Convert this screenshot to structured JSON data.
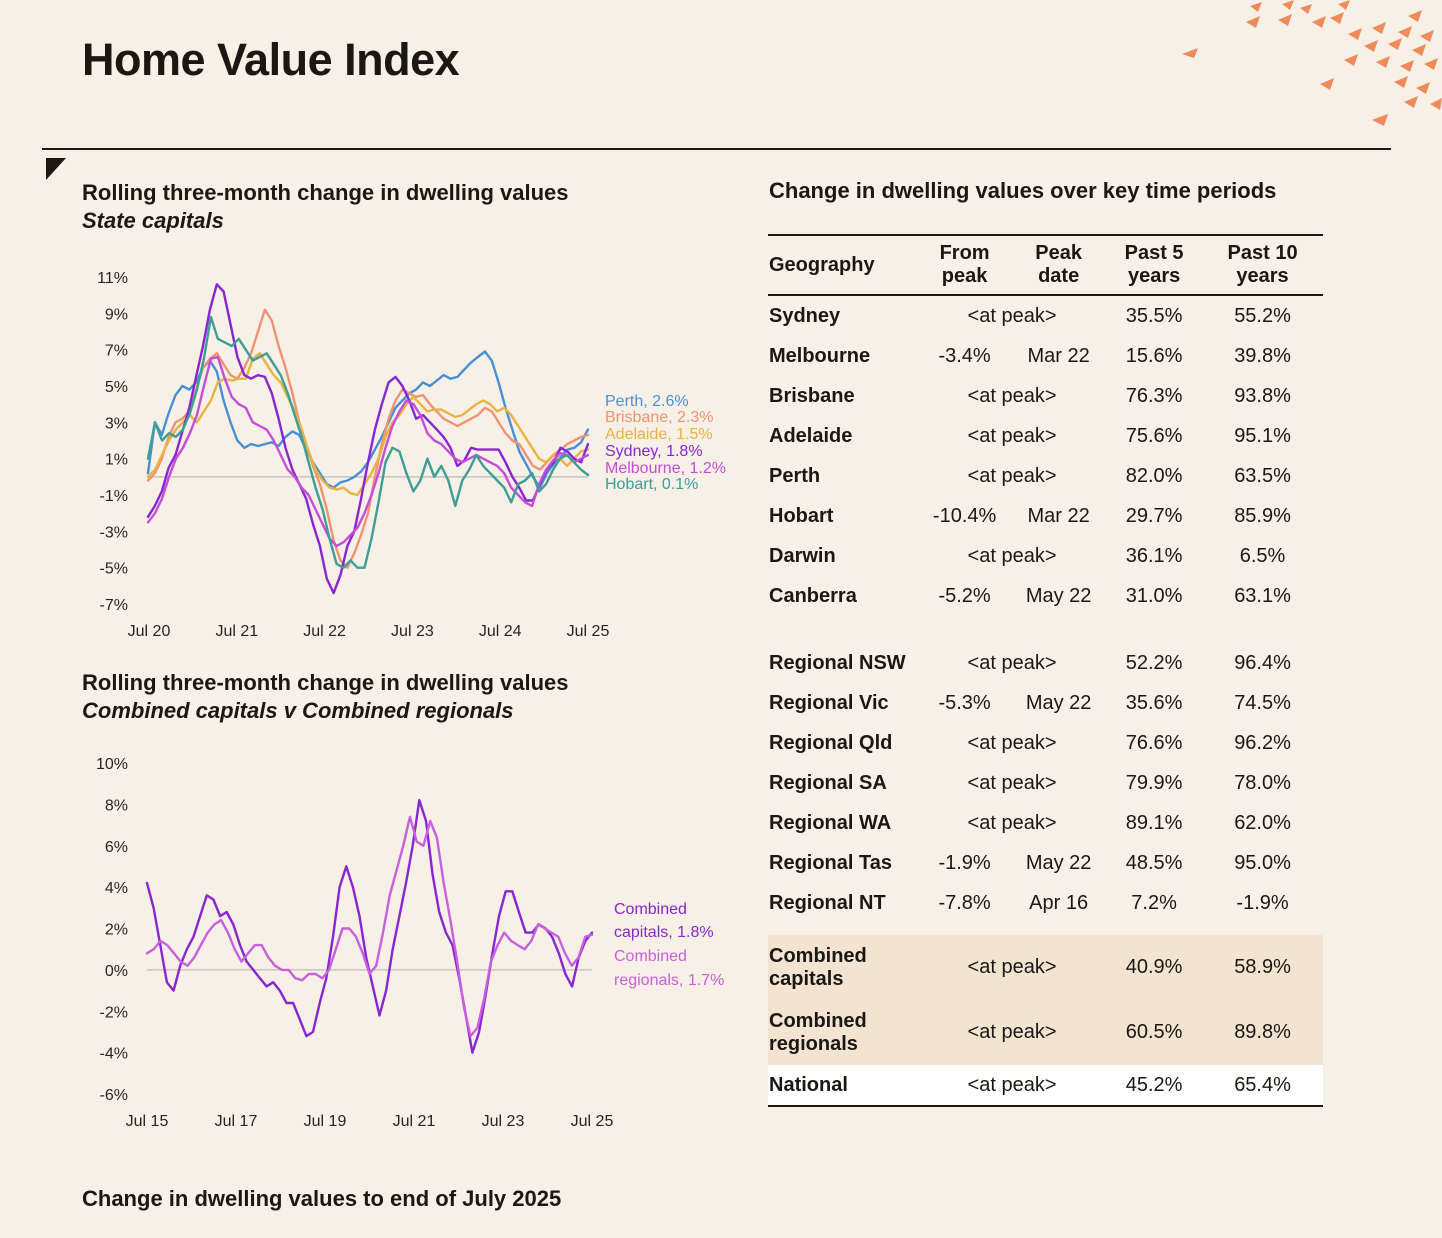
{
  "page": {
    "title": "Home Value Index",
    "footer_title": "Change in dwelling values to end of July 2025"
  },
  "colors": {
    "background": "#f6f0e6",
    "perth": "#4a8fd6",
    "brisbane": "#ef9473",
    "adelaide": "#e9b341",
    "sydney": "#8a25d2",
    "melbourne": "#c64dd8",
    "hobart": "#3e9e97",
    "combined_capitals": "#8a25d2",
    "combined_regionals": "#c860de",
    "table_highlight": "#f3e3d1"
  },
  "chart_data": [
    {
      "type": "line",
      "title": "Rolling three-month change in dwelling values",
      "subtitle": "State capitals",
      "xlabel": "",
      "ylabel": "",
      "x_ticks": [
        "Jul 20",
        "Jul 21",
        "Jul 22",
        "Jul 23",
        "Jul 24",
        "Jul 25"
      ],
      "y_ticks": [
        "11%",
        "9%",
        "7%",
        "5%",
        "3%",
        "1%",
        "-1%",
        "-3%",
        "-5%",
        "-7%"
      ],
      "ylim": [
        -7,
        11
      ],
      "x_range": [
        "Jun 20",
        "Jul 25"
      ],
      "series": [
        {
          "name": "Perth",
          "label": "Perth, 2.6%",
          "color": "#4a8fd6",
          "values": [
            0.2,
            3.0,
            2.3,
            3.5,
            4.5,
            5.0,
            4.8,
            5.2,
            6.0,
            6.4,
            5.8,
            4.2,
            3.0,
            2.0,
            1.6,
            1.8,
            1.7,
            1.8,
            1.9,
            1.7,
            2.2,
            2.5,
            2.3,
            1.5,
            0.8,
            0.2,
            -0.4,
            -0.6,
            -0.3,
            -0.2,
            0.0,
            0.3,
            0.8,
            1.5,
            2.2,
            3.0,
            3.8,
            4.2,
            4.6,
            4.8,
            5.2,
            5.0,
            5.3,
            5.6,
            5.4,
            5.5,
            5.9,
            6.3,
            6.6,
            6.9,
            6.4,
            5.2,
            3.8,
            2.6,
            1.4,
            0.7,
            0.0,
            -0.6,
            0.2,
            0.7,
            1.1,
            1.5,
            1.6,
            1.9,
            2.6
          ]
        },
        {
          "name": "Brisbane",
          "label": "Brisbane, 2.3%",
          "color": "#ef9473",
          "values": [
            -0.2,
            0.2,
            1.0,
            2.2,
            3.0,
            3.2,
            3.6,
            4.8,
            6.0,
            6.5,
            6.8,
            6.2,
            5.6,
            5.4,
            6.0,
            6.8,
            8.0,
            9.2,
            8.6,
            7.2,
            6.0,
            4.6,
            3.0,
            1.8,
            0.6,
            -0.4,
            -1.8,
            -3.5,
            -4.6,
            -5.0,
            -4.2,
            -3.2,
            -2.0,
            0.0,
            1.8,
            3.2,
            4.2,
            4.8,
            4.6,
            4.4,
            4.5,
            4.0,
            3.6,
            3.2,
            3.0,
            2.8,
            3.0,
            3.2,
            3.4,
            3.8,
            3.6,
            3.0,
            2.4,
            2.0,
            1.8,
            1.2,
            0.6,
            0.4,
            0.8,
            1.2,
            1.5,
            1.8,
            2.0,
            2.2,
            2.3
          ]
        },
        {
          "name": "Adelaide",
          "label": "Adelaide, 1.5%",
          "color": "#e9b341",
          "values": [
            0.0,
            0.4,
            1.2,
            2.0,
            2.6,
            3.0,
            3.4,
            3.0,
            3.6,
            4.2,
            5.2,
            5.4,
            5.3,
            5.4,
            5.4,
            6.5,
            6.8,
            6.2,
            5.6,
            5.2,
            4.4,
            3.6,
            2.6,
            1.4,
            0.4,
            -0.2,
            -0.6,
            -0.7,
            -0.6,
            -0.9,
            -1.0,
            -0.4,
            0.2,
            1.0,
            2.2,
            3.0,
            3.4,
            4.0,
            4.4,
            4.0,
            3.6,
            3.7,
            3.7,
            3.5,
            3.3,
            3.4,
            3.7,
            4.0,
            4.2,
            4.0,
            3.6,
            3.8,
            3.4,
            2.8,
            2.2,
            1.6,
            1.0,
            0.8,
            1.2,
            1.0,
            0.6,
            1.0,
            1.4,
            1.5
          ]
        },
        {
          "name": "Sydney",
          "label": "Sydney, 1.8%",
          "color": "#8a25d2",
          "values": [
            -2.2,
            -1.6,
            -0.8,
            0.5,
            1.2,
            2.5,
            3.8,
            5.5,
            7.2,
            9.2,
            10.6,
            10.2,
            8.4,
            6.6,
            5.6,
            5.4,
            5.6,
            5.5,
            4.6,
            3.2,
            1.6,
            0.4,
            -0.4,
            -1.2,
            -2.6,
            -3.8,
            -5.6,
            -6.4,
            -5.4,
            -3.8,
            -3.0,
            -1.2,
            0.8,
            2.6,
            4.0,
            5.2,
            5.5,
            5.0,
            4.2,
            3.2,
            3.4,
            3.0,
            2.6,
            2.2,
            1.6,
            0.6,
            0.9,
            1.6,
            1.5,
            1.5,
            1.5,
            1.5,
            0.8,
            0.0,
            -0.6,
            -1.3,
            -1.3,
            -0.4,
            0.4,
            0.8,
            1.6,
            1.4,
            1.0,
            0.8,
            1.8
          ]
        },
        {
          "name": "Melbourne",
          "label": "Melbourne, 1.2%",
          "color": "#c64dd8",
          "values": [
            -2.5,
            -2.0,
            -1.2,
            0.0,
            1.0,
            1.6,
            2.4,
            3.4,
            5.0,
            6.5,
            6.6,
            5.4,
            4.4,
            4.0,
            3.8,
            3.0,
            2.8,
            2.6,
            2.0,
            1.2,
            0.4,
            0.0,
            -0.6,
            -1.0,
            -1.8,
            -2.6,
            -3.4,
            -3.8,
            -3.6,
            -3.2,
            -2.8,
            -2.0,
            -1.0,
            0.2,
            1.6,
            2.8,
            3.6,
            4.2,
            4.0,
            3.4,
            2.4,
            2.0,
            1.8,
            1.4,
            1.0,
            0.8,
            1.0,
            1.2,
            1.0,
            0.8,
            0.6,
            0.2,
            -0.6,
            -1.0,
            -1.4,
            -1.6,
            -0.4,
            0.4,
            0.9,
            1.3,
            1.2,
            0.8,
            1.0,
            1.2
          ]
        },
        {
          "name": "Hobart",
          "label": "Hobart, 0.1%",
          "color": "#3e9e97",
          "values": [
            1.0,
            3.0,
            2.0,
            2.4,
            2.2,
            2.6,
            3.5,
            4.8,
            6.5,
            8.8,
            7.6,
            7.4,
            7.2,
            7.6,
            7.0,
            6.4,
            6.6,
            6.8,
            6.2,
            5.6,
            4.6,
            3.4,
            2.2,
            0.8,
            -0.6,
            -1.8,
            -3.4,
            -4.8,
            -5.0,
            -4.6,
            -5.0,
            -5.0,
            -3.4,
            -1.4,
            0.8,
            1.6,
            1.4,
            0.2,
            -0.8,
            -0.2,
            1.0,
            0.0,
            0.6,
            -0.2,
            -1.6,
            -0.2,
            0.4,
            1.2,
            0.6,
            0.2,
            -0.2,
            -0.6,
            -1.4,
            -0.4,
            -0.2,
            0.2,
            -0.8,
            -0.4,
            0.4,
            1.0,
            1.2,
            0.8,
            0.4,
            0.1
          ]
        }
      ]
    },
    {
      "type": "line",
      "title": "Rolling three-month change in dwelling values",
      "subtitle": "Combined capitals v Combined regionals",
      "xlabel": "",
      "ylabel": "",
      "x_ticks": [
        "Jul 15",
        "Jul 17",
        "Jul 19",
        "Jul 21",
        "Jul 23",
        "Jul 25"
      ],
      "y_ticks": [
        "10%",
        "8%",
        "6%",
        "4%",
        "2%",
        "0%",
        "-2%",
        "-4%",
        "-6%"
      ],
      "ylim": [
        -6,
        10
      ],
      "x_range": [
        "Jul 15",
        "Jul 25"
      ],
      "series": [
        {
          "name": "Combined capitals",
          "label": "Combined capitals, 1.8%",
          "color": "#8a25d2",
          "values": [
            4.2,
            3.0,
            1.2,
            -0.6,
            -1.0,
            0.2,
            1.0,
            1.6,
            2.6,
            3.6,
            3.4,
            2.6,
            2.8,
            2.2,
            1.2,
            0.4,
            0.0,
            -0.4,
            -0.8,
            -0.6,
            -1.0,
            -1.6,
            -1.6,
            -2.4,
            -3.2,
            -3.0,
            -1.6,
            -0.4,
            1.6,
            4.0,
            5.0,
            4.0,
            2.6,
            0.6,
            -0.8,
            -2.2,
            -1.0,
            1.0,
            2.6,
            4.2,
            6.0,
            8.2,
            7.2,
            4.6,
            2.8,
            1.8,
            1.2,
            -0.4,
            -2.2,
            -4.0,
            -3.0,
            -1.2,
            0.8,
            2.6,
            3.8,
            3.8,
            2.8,
            1.8,
            1.8,
            2.2,
            2.0,
            1.6,
            0.8,
            -0.2,
            -0.8,
            0.6,
            1.4,
            1.8
          ]
        },
        {
          "name": "Combined regionals",
          "label": "Combined regionals, 1.7%",
          "color": "#c860de",
          "values": [
            0.8,
            1.0,
            1.4,
            1.2,
            0.8,
            0.4,
            0.2,
            0.6,
            1.2,
            1.8,
            2.2,
            2.4,
            1.8,
            1.0,
            0.4,
            0.8,
            1.2,
            1.2,
            0.6,
            0.2,
            0.0,
            0.0,
            -0.4,
            -0.5,
            -0.2,
            -0.2,
            -0.4,
            0.0,
            1.0,
            2.0,
            2.0,
            1.6,
            0.8,
            -0.2,
            0.2,
            1.8,
            3.6,
            4.8,
            6.0,
            7.4,
            6.2,
            6.0,
            7.2,
            6.4,
            4.2,
            2.4,
            0.4,
            -1.8,
            -3.2,
            -2.8,
            -1.4,
            0.4,
            1.2,
            1.8,
            1.4,
            1.2,
            1.0,
            1.4,
            2.2,
            2.0,
            1.8,
            1.6,
            0.8,
            0.2,
            0.6,
            1.6,
            1.7
          ]
        }
      ]
    }
  ],
  "charts": {
    "state": {
      "title": "Rolling three-month change in dwelling values",
      "subtitle": "State capitals"
    },
    "combined": {
      "title": "Rolling three-month change in dwelling values",
      "subtitle": "Combined capitals v Combined regionals",
      "legend_capitals_1": "Combined",
      "legend_capitals_2": "capitals, 1.8%",
      "legend_regionals_1": "Combined",
      "legend_regionals_2": "regionals, 1.7%"
    }
  },
  "table": {
    "title": "Change in dwelling values over key time periods",
    "headers": {
      "geo": "Geography",
      "from_peak_1": "From",
      "from_peak_2": "peak",
      "peak_date_1": "Peak",
      "peak_date_2": "date",
      "past5_1": "Past 5",
      "past5_2": "years",
      "past10_1": "Past 10",
      "past10_2": "years"
    },
    "capitals": [
      {
        "geo": "Sydney",
        "at_peak": true,
        "from_peak": "<at peak>",
        "peak_date": "",
        "past5": "35.5%",
        "past10": "55.2%"
      },
      {
        "geo": "Melbourne",
        "at_peak": false,
        "from_peak": "-3.4%",
        "peak_date": "Mar 22",
        "past5": "15.6%",
        "past10": "39.8%"
      },
      {
        "geo": "Brisbane",
        "at_peak": true,
        "from_peak": "<at peak>",
        "peak_date": "",
        "past5": "76.3%",
        "past10": "93.8%"
      },
      {
        "geo": "Adelaide",
        "at_peak": true,
        "from_peak": "<at peak>",
        "peak_date": "",
        "past5": "75.6%",
        "past10": "95.1%"
      },
      {
        "geo": "Perth",
        "at_peak": true,
        "from_peak": "<at peak>",
        "peak_date": "",
        "past5": "82.0%",
        "past10": "63.5%"
      },
      {
        "geo": "Hobart",
        "at_peak": false,
        "from_peak": "-10.4%",
        "peak_date": "Mar 22",
        "past5": "29.7%",
        "past10": "85.9%"
      },
      {
        "geo": "Darwin",
        "at_peak": true,
        "from_peak": "<at peak>",
        "peak_date": "",
        "past5": "36.1%",
        "past10": "6.5%"
      },
      {
        "geo": "Canberra",
        "at_peak": false,
        "from_peak": "-5.2%",
        "peak_date": "May 22",
        "past5": "31.0%",
        "past10": "63.1%"
      }
    ],
    "regionals": [
      {
        "geo": "Regional NSW",
        "at_peak": true,
        "from_peak": "<at peak>",
        "peak_date": "",
        "past5": "52.2%",
        "past10": "96.4%"
      },
      {
        "geo": "Regional Vic",
        "at_peak": false,
        "from_peak": "-5.3%",
        "peak_date": "May 22",
        "past5": "35.6%",
        "past10": "74.5%"
      },
      {
        "geo": "Regional Qld",
        "at_peak": true,
        "from_peak": "<at peak>",
        "peak_date": "",
        "past5": "76.6%",
        "past10": "96.2%"
      },
      {
        "geo": "Regional SA",
        "at_peak": true,
        "from_peak": "<at peak>",
        "peak_date": "",
        "past5": "79.9%",
        "past10": "78.0%"
      },
      {
        "geo": "Regional WA",
        "at_peak": true,
        "from_peak": "<at peak>",
        "peak_date": "",
        "past5": "89.1%",
        "past10": "62.0%"
      },
      {
        "geo": "Regional Tas",
        "at_peak": false,
        "from_peak": "-1.9%",
        "peak_date": "May 22",
        "past5": "48.5%",
        "past10": "95.0%"
      },
      {
        "geo": "Regional NT",
        "at_peak": false,
        "from_peak": "-7.8%",
        "peak_date": "Apr 16",
        "past5": "7.2%",
        "past10": "-1.9%"
      }
    ],
    "combined": [
      {
        "geo_1": "Combined",
        "geo_2": "capitals",
        "from_peak": "<at peak>",
        "past5": "40.9%",
        "past10": "58.9%"
      },
      {
        "geo_1": "Combined",
        "geo_2": "regionals",
        "from_peak": "<at peak>",
        "past5": "60.5%",
        "past10": "89.8%"
      }
    ],
    "national": {
      "geo": "National",
      "from_peak": "<at peak>",
      "past5": "45.2%",
      "past10": "65.4%"
    }
  }
}
